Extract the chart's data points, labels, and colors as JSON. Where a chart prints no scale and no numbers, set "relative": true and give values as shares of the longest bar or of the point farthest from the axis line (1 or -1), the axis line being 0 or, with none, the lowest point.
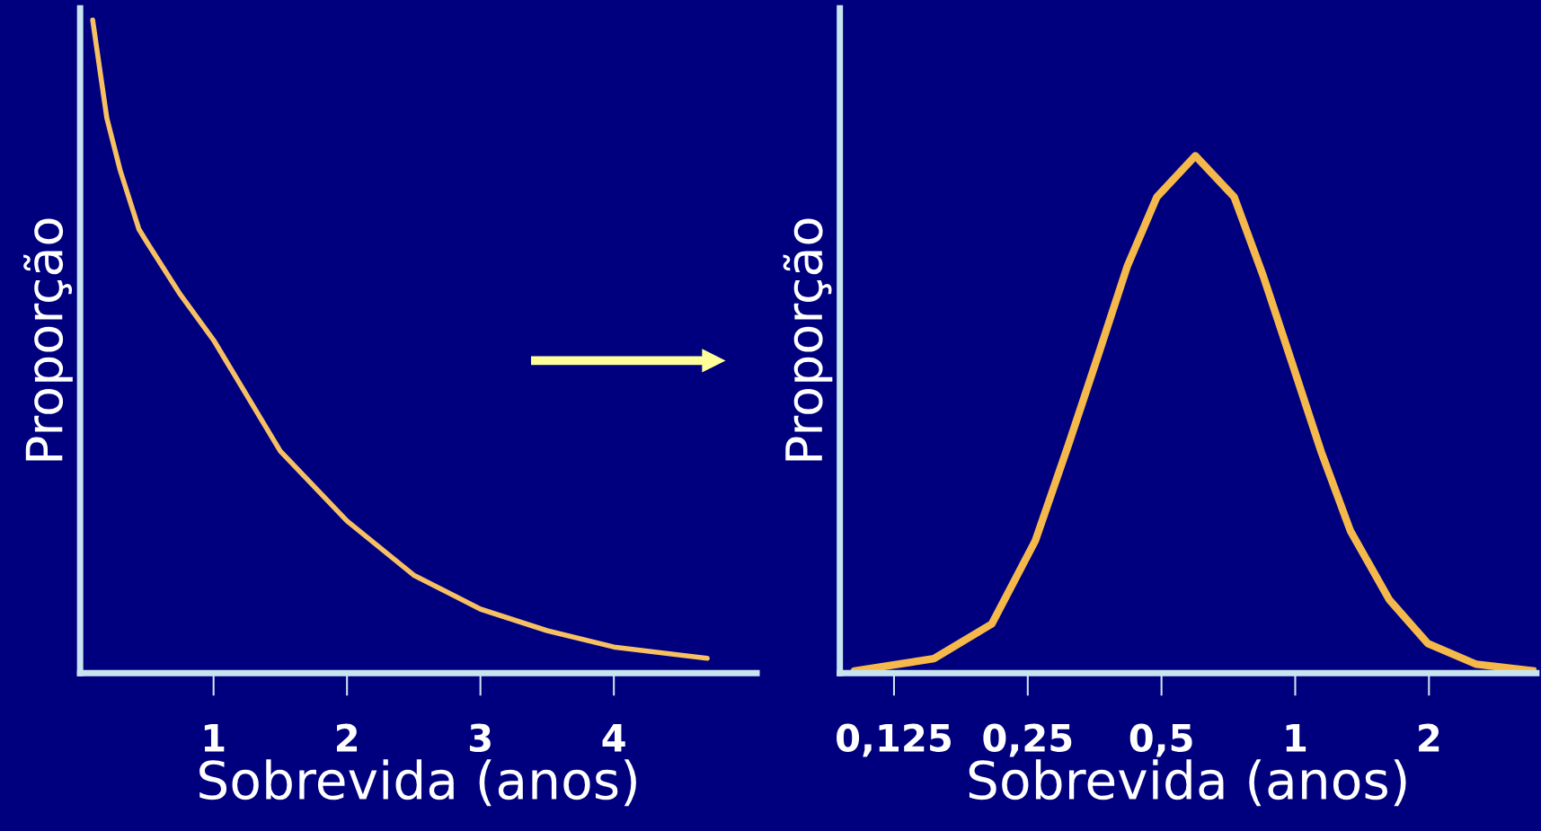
{
  "chart_data": [
    {
      "type": "line",
      "relative": true,
      "xlabel": "Sobrevida (anos)",
      "ylabel": "Proporção",
      "xlim": [
        0,
        5.07
      ],
      "xticks": [
        1,
        2,
        3,
        4
      ],
      "tick_labels": "x",
      "grid": false,
      "legend": false,
      "series": [
        {
          "color": "#f7c062",
          "x": [
            0.094,
            0.2,
            0.3,
            0.44,
            0.5,
            0.75,
            1,
            1.5,
            2,
            2.5,
            3,
            3.5,
            4,
            4.7
          ],
          "values": [
            1.0,
            0.85,
            0.77,
            0.68,
            0.66,
            0.58,
            0.51,
            0.34,
            0.233,
            0.15,
            0.098,
            0.065,
            0.04,
            0.0226
          ]
        }
      ]
    },
    {
      "type": "line",
      "relative": true,
      "log": "x",
      "xlabel": "Sobrevida (anos)",
      "ylabel": "Proporção",
      "xlim": [
        0.0944,
        3.49
      ],
      "xticks": [
        {
          "value": 0.125,
          "label": "0,125"
        },
        {
          "value": 0.25,
          "label": "0,25"
        },
        {
          "value": 0.5,
          "label": "0,5"
        },
        1,
        2
      ],
      "tick_labels": "x",
      "grid": false,
      "legend": false,
      "series": [
        {
          "color": "#f5b84a",
          "x": [
            0.1017,
            0.1537,
            0.2075,
            0.26,
            0.31,
            0.361,
            0.419,
            0.488,
            0.596,
            0.729,
            0.847,
            0.985,
            1.145,
            1.331,
            1.628,
            1.99,
            2.558,
            3.46
          ],
          "values": [
            0.004,
            0.028,
            0.095,
            0.256,
            0.446,
            0.617,
            0.787,
            0.92,
            1.0,
            0.92,
            0.768,
            0.598,
            0.427,
            0.275,
            0.142,
            0.057,
            0.017,
            0.004
          ]
        }
      ]
    }
  ]
}
